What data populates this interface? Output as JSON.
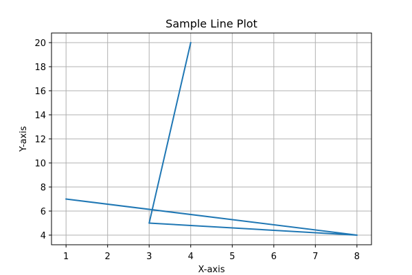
{
  "chart_data": {
    "type": "line",
    "title": "Sample Line Plot",
    "xlabel": "X-axis",
    "ylabel": "Y-axis",
    "x": [
      1,
      8,
      3,
      4
    ],
    "series": [
      {
        "values": [
          7,
          4,
          5,
          20
        ],
        "color": "#1f77b4"
      }
    ],
    "xlim": [
      0.65,
      8.35
    ],
    "ylim": [
      3.2,
      20.8
    ],
    "xticks": [
      1,
      2,
      3,
      4,
      5,
      6,
      7,
      8
    ],
    "yticks": [
      4,
      6,
      8,
      10,
      12,
      14,
      16,
      18,
      20
    ],
    "grid": true,
    "legend": false
  }
}
